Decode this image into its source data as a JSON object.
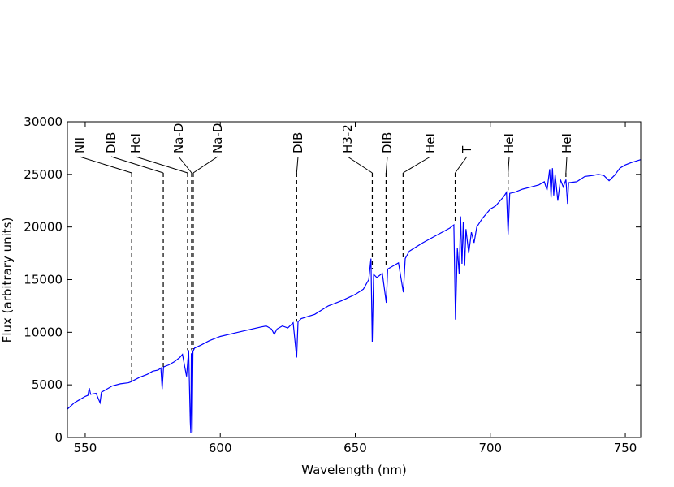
{
  "chart_data": {
    "type": "line",
    "x_label": "Wavelength (nm)",
    "y_label": "Flux (arbitrary units)",
    "xlim": [
      543.4,
      755.7
    ],
    "ylim": [
      0,
      30000
    ],
    "xticks": [
      550,
      600,
      650,
      700,
      750
    ],
    "yticks": [
      0,
      5000,
      10000,
      15000,
      20000,
      25000,
      30000
    ],
    "grid": false,
    "series": [
      {
        "color": "#0000ff",
        "x": [
          543.4,
          546,
          548,
          550,
          551,
          551.5,
          552,
          554,
          555.5,
          556,
          558,
          560,
          563,
          566,
          567,
          570,
          573,
          575,
          577,
          578,
          578.5,
          579,
          581,
          583,
          585,
          586,
          587.5,
          588.3,
          588.9,
          589.1,
          589.3,
          589.6,
          589.9,
          590.5,
          593,
          596,
          600,
          605,
          610,
          615,
          617,
          619,
          620,
          621,
          623,
          625,
          627,
          628.3,
          628.8,
          630,
          635,
          640,
          645,
          650,
          653,
          655,
          655.8,
          656.3,
          656.8,
          658,
          660,
          661.5,
          662,
          664,
          666,
          667.8,
          668.5,
          670,
          675,
          680,
          685,
          686.5,
          687.1,
          687.8,
          688.5,
          689,
          689.5,
          690,
          690.5,
          691,
          692,
          693,
          694,
          695,
          697,
          700,
          702,
          705,
          706,
          706.6,
          707.2,
          709,
          712,
          715,
          718,
          720,
          721,
          722,
          722.5,
          723,
          723.5,
          724,
          725,
          726,
          727,
          728,
          728.6,
          729,
          732,
          735,
          738,
          740,
          742,
          744,
          746,
          748,
          750,
          752,
          755.7
        ],
        "values": [
          2700,
          3300,
          3600,
          3900,
          4000,
          4700,
          4100,
          4200,
          3300,
          4300,
          4600,
          4900,
          5100,
          5200,
          5300,
          5700,
          6000,
          6300,
          6400,
          6600,
          4600,
          6700,
          6900,
          7200,
          7600,
          7900,
          5800,
          8300,
          1500,
          400,
          8000,
          500,
          8200,
          8500,
          8800,
          9200,
          9600,
          9900,
          10200,
          10500,
          10600,
          10300,
          9800,
          10300,
          10600,
          10400,
          10900,
          7600,
          11000,
          11300,
          11700,
          12500,
          13000,
          13600,
          14100,
          15000,
          17000,
          9100,
          15500,
          15200,
          15600,
          12800,
          16000,
          16300,
          16600,
          13800,
          17000,
          17700,
          18500,
          19200,
          19900,
          20200,
          11200,
          18000,
          15500,
          21000,
          16500,
          20500,
          16300,
          19800,
          17500,
          19500,
          18500,
          20000,
          20800,
          21700,
          22000,
          22900,
          23300,
          19300,
          23200,
          23300,
          23600,
          23800,
          24000,
          24300,
          23500,
          25500,
          22800,
          25600,
          23000,
          25000,
          22500,
          24500,
          23800,
          24500,
          22200,
          24200,
          24300,
          24800,
          24900,
          25000,
          24900,
          24400,
          24900,
          25600,
          25900,
          26100,
          26400
        ]
      }
    ],
    "annotations": [
      {
        "label": "NII",
        "x": 567.2,
        "ymin": 5300
      },
      {
        "label": "DIB",
        "x": 578.9,
        "ymin": 6500
      },
      {
        "label": "HeI",
        "x": 587.9,
        "ymin": 8300
      },
      {
        "label": "Na-D",
        "x": 589.4,
        "ymin": 8300
      },
      {
        "label": "Na-D",
        "x": 590.0,
        "ymin": 8400
      },
      {
        "label": "DIB",
        "x": 628.3,
        "ymin": 11000
      },
      {
        "label": "H3-2",
        "x": 656.3,
        "ymin": 16000
      },
      {
        "label": "DIB",
        "x": 661.4,
        "ymin": 16200
      },
      {
        "label": "HeI",
        "x": 667.7,
        "ymin": 17000
      },
      {
        "label": "T",
        "x": 687.0,
        "ymin": 20500
      },
      {
        "label": "HeI",
        "x": 706.6,
        "ymin": 23500
      },
      {
        "label": "HeI",
        "x": 728.0,
        "ymin": 24500
      }
    ]
  }
}
